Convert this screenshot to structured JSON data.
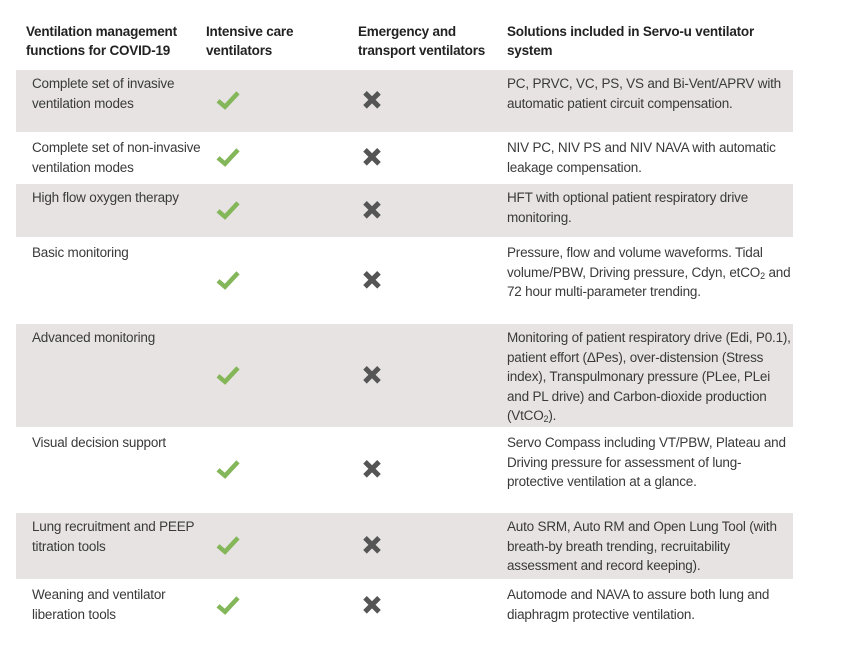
{
  "header": {
    "col1": "Ventilation management functions for COVID-19",
    "col2": "Intensive care ventilators",
    "col3": "Emergency and transport ventilators",
    "col4": "Solutions included in Servo-u ventilator system"
  },
  "colors": {
    "check": "#84b65a",
    "cross": "#555555",
    "shade": "#e8e3e3"
  },
  "rows": [
    {
      "function": "Complete set of invasive ventilation modes",
      "icu": "check-icon",
      "transport": "cross-icon",
      "solution": "PC, PRVC, VC, PS, VS and Bi-Vent/APRV with automatic patient circuit compensation.",
      "height": 62
    },
    {
      "function": "Complete set of non-invasive ventilation modes",
      "icu": "check-icon",
      "transport": "cross-icon",
      "solution": "NIV PC, NIV PS and NIV NAVA with automatic leakage compensation.",
      "height": 48
    },
    {
      "function": "High flow oxygen therapy",
      "icu": "check-icon",
      "transport": "cross-icon",
      "solution": "HFT with optional patient respiratory drive monitoring.",
      "height": 53
    },
    {
      "function": "Basic monitoring",
      "icu": "check-icon",
      "transport": "cross-icon",
      "solution": "Pressure, flow and volume waveforms. Tidal volume/PBW, Driving pressure, Cdyn, etCO₂ and 72 hour multi-parameter trending.",
      "height": 83
    },
    {
      "function": "Advanced monitoring",
      "icu": "check-icon",
      "transport": "cross-icon",
      "solution": "Monitoring of patient respiratory drive (Edi, P0.1), patient effort (ΔPes), over-distension (Stress index), Transpulmonary pressure (PLee, PLei and PL drive) and Carbon-dioxide production (VtCO₂).",
      "height": 103
    },
    {
      "function": "Visual  decision support",
      "icu": "check-icon",
      "transport": "cross-icon",
      "solution": "Servo Compass including VT/PBW, Plateau and Driving pressure for assessment of lung-protective ventilation at a glance.",
      "height": 82
    },
    {
      "function": "Lung recruitment and PEEP titration tools",
      "icu": "check-icon",
      "transport": "cross-icon",
      "solution": "Auto SRM, Auto RM and Open Lung Tool (with breath-by breath trending, recruitability assessment and record keeping).",
      "height": 66
    },
    {
      "function": "Weaning and ventilator liberation tools",
      "icu": "check-icon",
      "transport": "cross-icon",
      "solution": "Automode and NAVA to assure both lung and diaphragm protective ventilation.",
      "height": 50
    }
  ]
}
